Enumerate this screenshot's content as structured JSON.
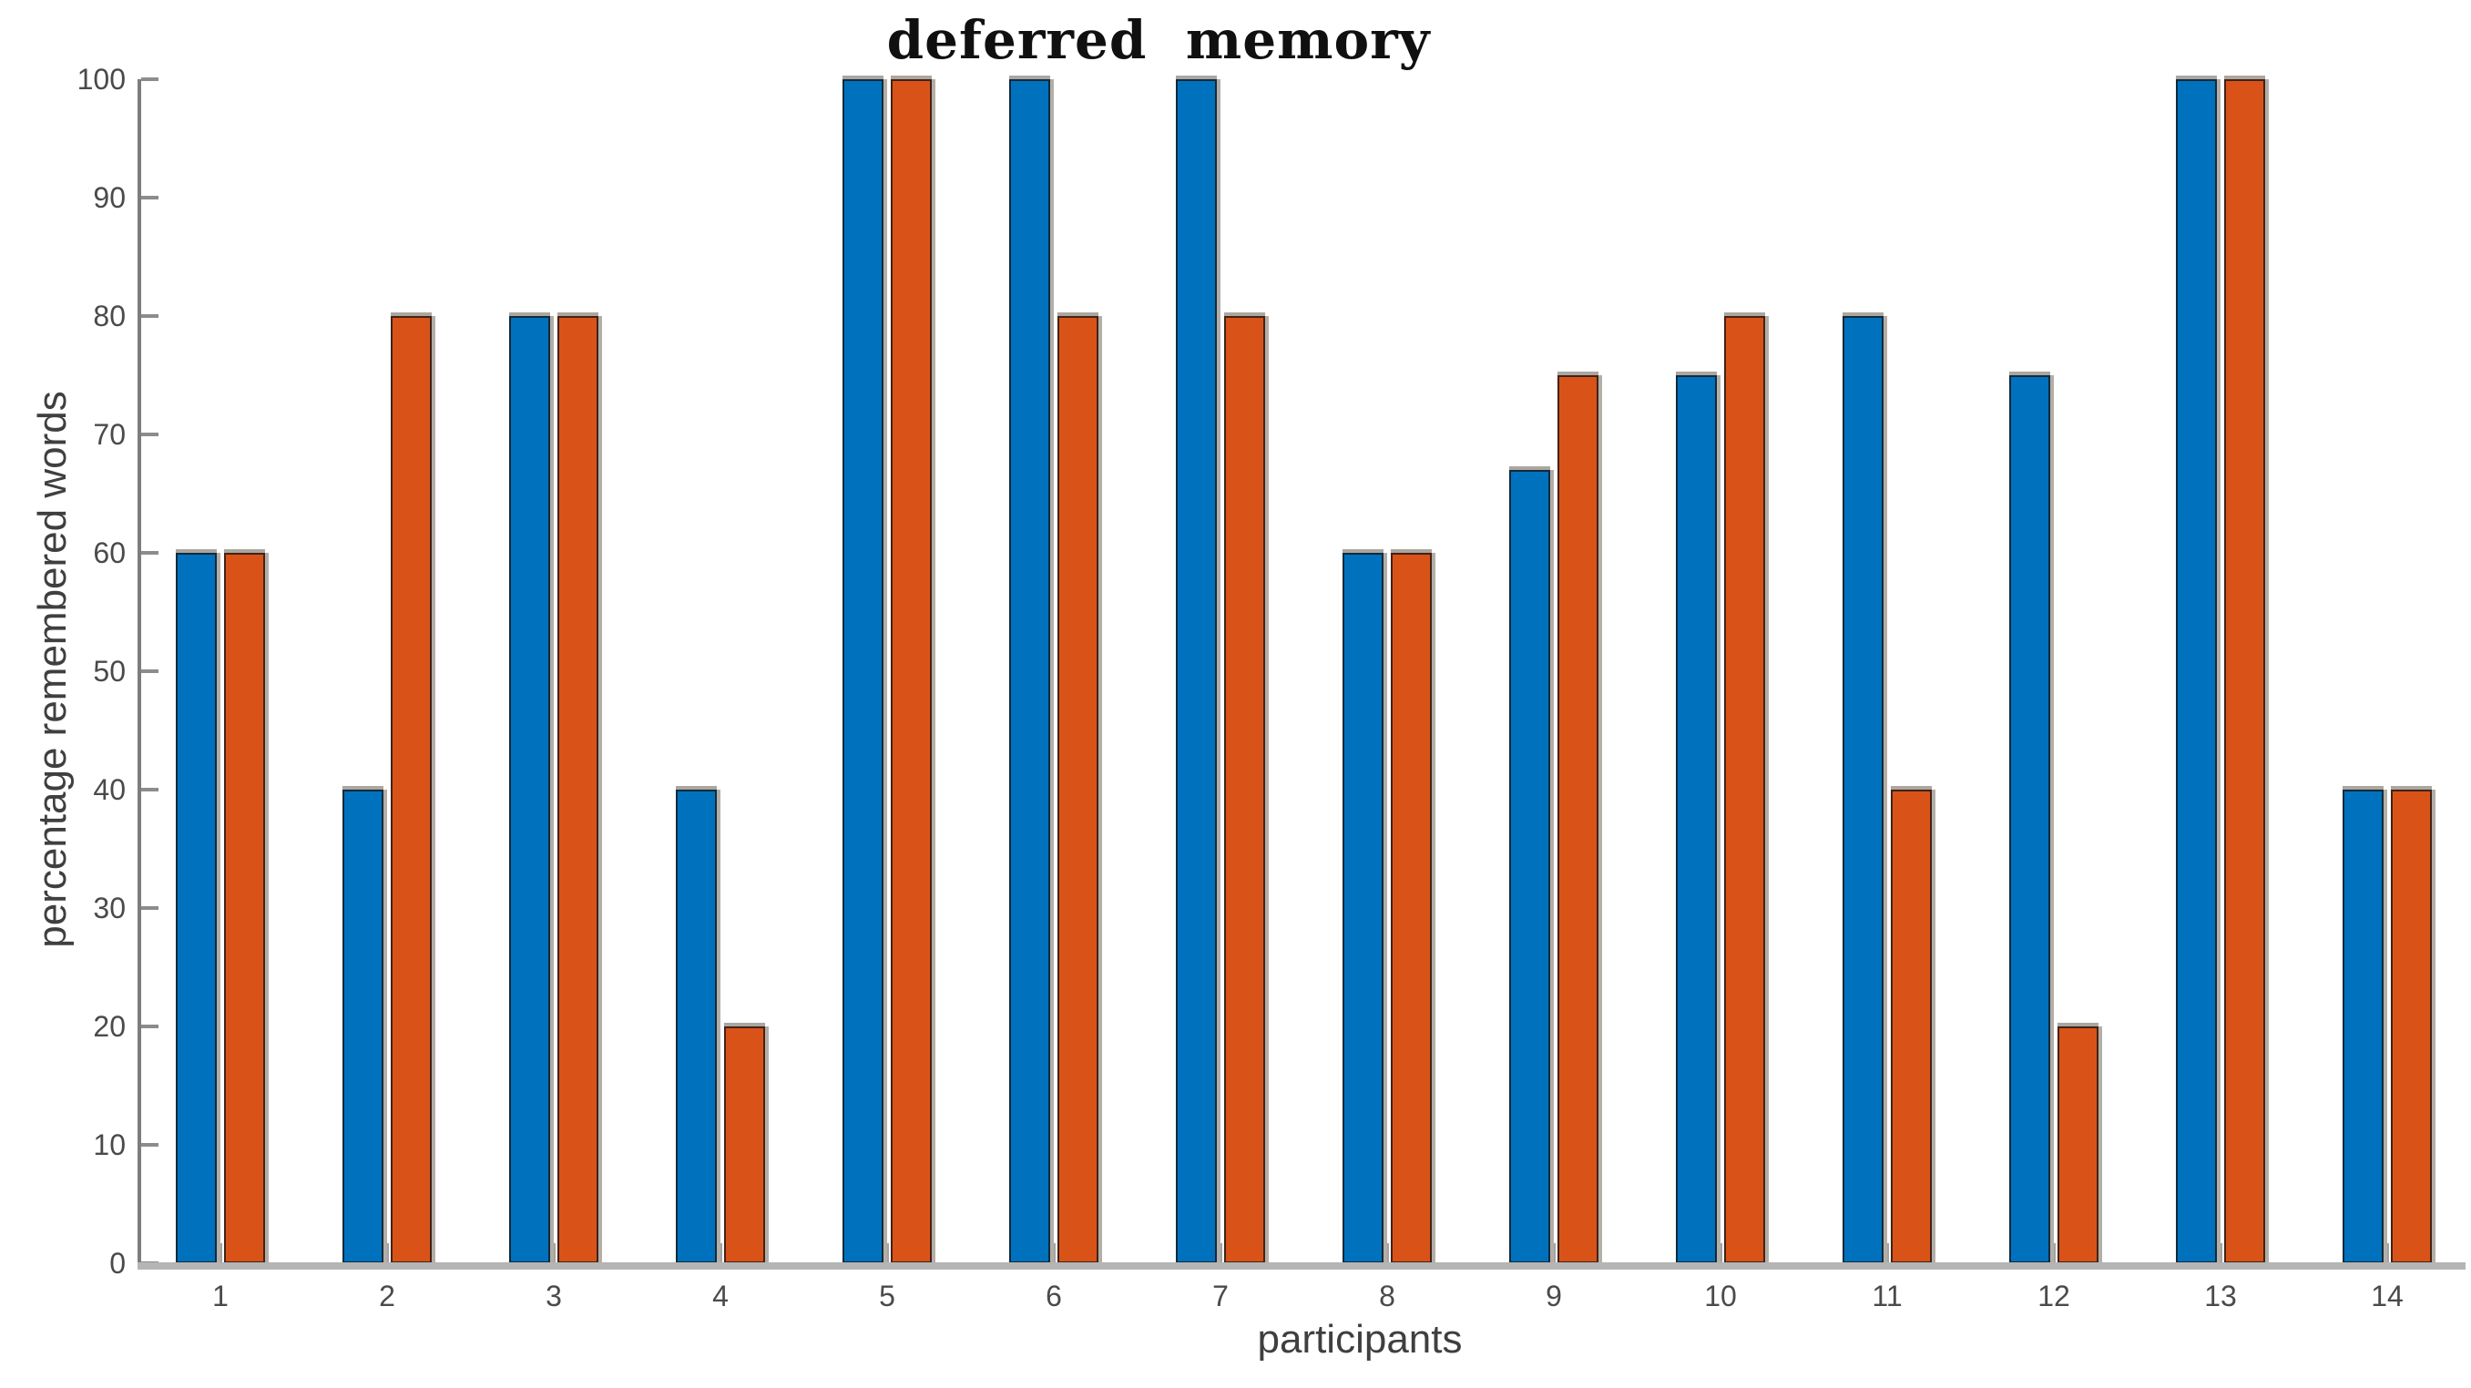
{
  "title": "deferred  memory",
  "chart_data": {
    "type": "bar",
    "title": "deferred  memory",
    "xlabel": "participants",
    "ylabel": "percentage remembered words",
    "categories": [
      "1",
      "2",
      "3",
      "4",
      "5",
      "6",
      "7",
      "8",
      "9",
      "10",
      "11",
      "12",
      "13",
      "14"
    ],
    "series": [
      {
        "name": "blue",
        "color": "#0072BD",
        "values": [
          60,
          40,
          80,
          40,
          100,
          100,
          100,
          60,
          67,
          75,
          80,
          75,
          100,
          40
        ]
      },
      {
        "name": "orange",
        "color": "#D95319",
        "values": [
          60,
          80,
          80,
          20,
          100,
          80,
          80,
          60,
          75,
          80,
          40,
          20,
          100,
          40
        ]
      }
    ],
    "ylim": [
      0,
      100
    ],
    "yticks": [
      0,
      10,
      20,
      30,
      40,
      50,
      60,
      70,
      80,
      90,
      100
    ],
    "grid": false,
    "legend": "none",
    "axis_colors": {
      "y_axis_line": "#7d7d7d",
      "x_axis_line": "#b5b5b5",
      "tick_text": "#4a4a4a",
      "label_text": "#3f3f3f",
      "title_text": "#101010"
    }
  }
}
